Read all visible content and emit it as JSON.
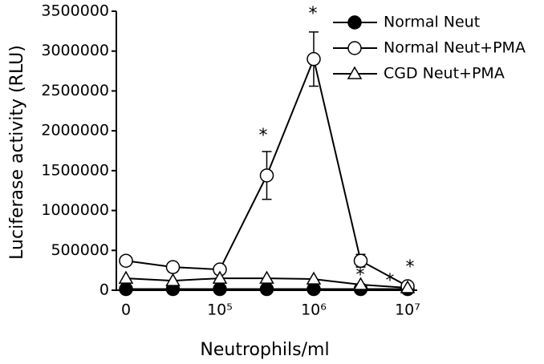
{
  "chart_data": {
    "type": "line",
    "categories": [
      "0",
      null,
      "10⁵",
      null,
      "10⁶",
      null,
      "10⁷"
    ],
    "x_label": "Neutrophils/ml",
    "y_label": "Luciferase activity (RLU)",
    "ylim": [
      0,
      3500000
    ],
    "yticks": [
      0,
      500000,
      1000000,
      1500000,
      2000000,
      2500000,
      3000000,
      3500000
    ],
    "series": [
      {
        "name": "Normal Neut",
        "color": "#000000",
        "marker": "filled-circle",
        "values": [
          15000,
          15000,
          15000,
          15000,
          15000,
          15000,
          15000
        ]
      },
      {
        "name": "Normal Neut+PMA",
        "color": "#000000",
        "marker": "open-circle",
        "values": [
          370000,
          290000,
          260000,
          1440000,
          2900000,
          370000,
          50000
        ],
        "errors": [
          null,
          60000,
          null,
          300000,
          340000,
          80000,
          null
        ]
      },
      {
        "name": "CGD Neut+PMA",
        "color": "#000000",
        "marker": "open-triangle",
        "values": [
          150000,
          120000,
          150000,
          150000,
          140000,
          70000,
          30000
        ]
      }
    ],
    "annotations": [
      "*",
      "*",
      "*",
      "*",
      "*"
    ]
  }
}
